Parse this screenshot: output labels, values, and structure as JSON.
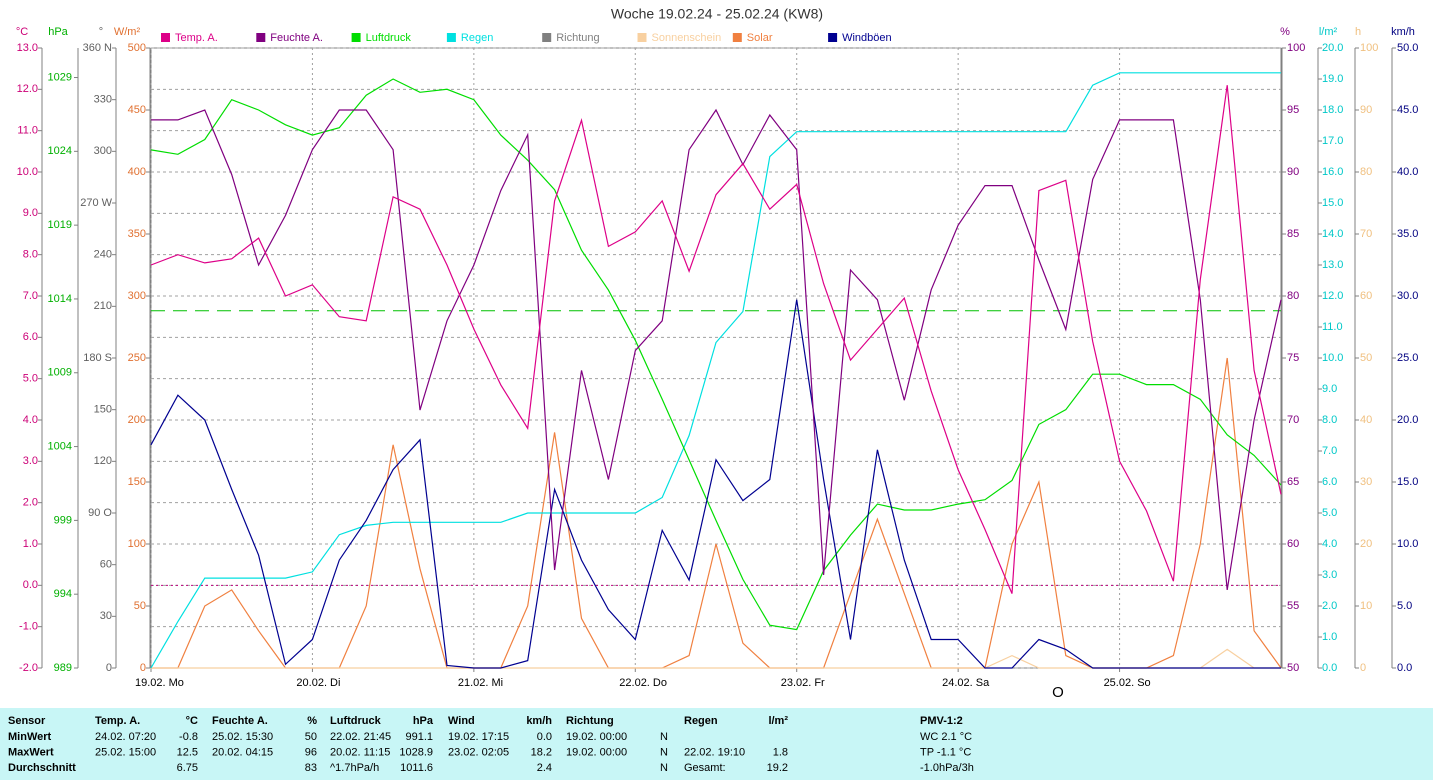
{
  "chart_data": {
    "type": "line",
    "title": "Woche 19.02.24 - 25.02.24 (KW8)",
    "grid": true,
    "xlim": [
      0,
      168
    ],
    "xticks": [
      {
        "value": 0,
        "label": "19.02. Mo"
      },
      {
        "value": 24,
        "label": "20.02. Di"
      },
      {
        "value": 48,
        "label": "21.02. Mi"
      },
      {
        "value": 72,
        "label": "22.02. Do"
      },
      {
        "value": 96,
        "label": "23.02. Fr"
      },
      {
        "value": 120,
        "label": "24.02. Sa"
      },
      {
        "value": 144,
        "label": "25.02. So"
      }
    ],
    "annotation": "O",
    "axes": {
      "temp": {
        "label": "°C",
        "color": "#cc0077",
        "ylim": [
          -2,
          13
        ],
        "yticks": [
          {
            "value": -2,
            "label": "-2.0"
          },
          {
            "value": -1,
            "label": "-1.0"
          },
          {
            "value": 0,
            "label": "0.0"
          },
          {
            "value": 1,
            "label": "1.0"
          },
          {
            "value": 2,
            "label": "2.0"
          },
          {
            "value": 3,
            "label": "3.0"
          },
          {
            "value": 4,
            "label": "4.0"
          },
          {
            "value": 5,
            "label": "5.0"
          },
          {
            "value": 6,
            "label": "6.0"
          },
          {
            "value": 7,
            "label": "7.0"
          },
          {
            "value": 8,
            "label": "8.0"
          },
          {
            "value": 9,
            "label": "9.0"
          },
          {
            "value": 10,
            "label": "10.0"
          },
          {
            "value": 11,
            "label": "11.0"
          },
          {
            "value": 12,
            "label": "12.0"
          },
          {
            "value": 13,
            "label": "13.0"
          }
        ]
      },
      "pressure": {
        "label": "hPa",
        "color": "#00b000",
        "ylim": [
          989,
          1031
        ],
        "yticks": [
          989,
          994,
          999,
          1004,
          1009,
          1014,
          1019,
          1024,
          1029
        ]
      },
      "direction": {
        "label": "°",
        "color": "#606060",
        "ylim": [
          0,
          360
        ],
        "yticks": [
          0,
          30,
          60,
          {
            "value": 90,
            "label": "90 O"
          },
          120,
          150,
          {
            "value": 180,
            "label": "180 S"
          },
          210,
          240,
          {
            "value": 270,
            "label": "270 W"
          },
          300,
          330,
          {
            "value": 360,
            "label": "360 N"
          }
        ]
      },
      "solar": {
        "label": "W/m²",
        "color": "#e07030",
        "ylim": [
          0,
          500
        ],
        "yticks": [
          0,
          50,
          100,
          150,
          200,
          250,
          300,
          350,
          400,
          450,
          500
        ]
      },
      "humidity": {
        "label": "%",
        "color": "#800080",
        "ylim": [
          50,
          100
        ],
        "yticks": [
          50,
          55,
          60,
          65,
          70,
          75,
          80,
          85,
          90,
          95,
          100
        ]
      },
      "rain": {
        "label": "l/m²",
        "color": "#00c8c8",
        "ylim": [
          0,
          20
        ],
        "yticks": [
          {
            "value": 0,
            "label": "0.0"
          },
          {
            "value": 1,
            "label": "1.0"
          },
          {
            "value": 2,
            "label": "2.0"
          },
          {
            "value": 3,
            "label": "3.0"
          },
          {
            "value": 4,
            "label": "4.0"
          },
          {
            "value": 5,
            "label": "5.0"
          },
          {
            "value": 6,
            "label": "6.0"
          },
          {
            "value": 7,
            "label": "7.0"
          },
          {
            "value": 8,
            "label": "8.0"
          },
          {
            "value": 9,
            "label": "9.0"
          },
          {
            "value": 10,
            "label": "10.0"
          },
          {
            "value": 11,
            "label": "11.0"
          },
          {
            "value": 12,
            "label": "12.0"
          },
          {
            "value": 13,
            "label": "13.0"
          },
          {
            "value": 14,
            "label": "14.0"
          },
          {
            "value": 15,
            "label": "15.0"
          },
          {
            "value": 16,
            "label": "16.0"
          },
          {
            "value": 17,
            "label": "17.0"
          },
          {
            "value": 18,
            "label": "18.0"
          },
          {
            "value": 19,
            "label": "19.0"
          },
          {
            "value": 20,
            "label": "20.0"
          }
        ]
      },
      "sunshine": {
        "label": "h",
        "color": "#f0c080",
        "ylim": [
          0,
          100
        ],
        "yticks": [
          0,
          10,
          20,
          30,
          40,
          50,
          60,
          70,
          80,
          90,
          100
        ]
      },
      "gust": {
        "label": "km/h",
        "color": "#000080",
        "ylim": [
          0,
          50
        ],
        "yticks": [
          {
            "value": 0,
            "label": "0.0"
          },
          {
            "value": 5,
            "label": "5.0"
          },
          {
            "value": 10,
            "label": "10.0"
          },
          {
            "value": 15,
            "label": "15.0"
          },
          {
            "value": 20,
            "label": "20.0"
          },
          {
            "value": 25,
            "label": "25.0"
          },
          {
            "value": 30,
            "label": "30.0"
          },
          {
            "value": 35,
            "label": "35.0"
          },
          {
            "value": 40,
            "label": "40.0"
          },
          {
            "value": 45,
            "label": "45.0"
          },
          {
            "value": 50,
            "label": "50.0"
          }
        ]
      }
    },
    "reference_lines": [
      {
        "axis": "pressure",
        "value": 1013.2,
        "color": "#00c000",
        "dash": "14 8"
      },
      {
        "axis": "temp",
        "value": 0,
        "color": "#c00080",
        "dash": "2 3"
      }
    ],
    "x": [
      0,
      4,
      8,
      12,
      16,
      20,
      24,
      28,
      32,
      36,
      40,
      44,
      48,
      52,
      56,
      60,
      64,
      68,
      72,
      76,
      80,
      84,
      88,
      92,
      96,
      100,
      104,
      108,
      112,
      116,
      120,
      124,
      128,
      132,
      136,
      140,
      144,
      148,
      152,
      156,
      160,
      164,
      168
    ],
    "series": [
      {
        "name": "Temp. A.",
        "color": "#dd0088",
        "axis": "temp",
        "values": [
          7.75,
          8.0,
          7.8,
          7.9,
          8.4,
          7.0,
          7.27,
          6.5,
          6.4,
          9.4,
          9.1,
          7.75,
          6.2,
          4.85,
          3.8,
          9.3,
          11.25,
          8.2,
          8.55,
          9.3,
          7.6,
          9.45,
          10.2,
          9.1,
          9.7,
          7.3,
          5.45,
          6.2,
          6.95,
          4.7,
          2.8,
          1.35,
          -0.2,
          9.55,
          9.8,
          5.9,
          3.0,
          1.8,
          0.1,
          7.4,
          12.1,
          5.2,
          2.2
        ]
      },
      {
        "name": "Feuchte A.",
        "color": "#800080",
        "axis": "humidity",
        "values": [
          94.2,
          94.2,
          95,
          89.8,
          82.5,
          86.5,
          91.8,
          95,
          95,
          91.8,
          70.8,
          78,
          82.5,
          88.5,
          93,
          57.9,
          74,
          65.2,
          75.6,
          78,
          91.8,
          95,
          90.6,
          94.6,
          91.8,
          57.5,
          82.1,
          79.7,
          71.6,
          80.5,
          85.7,
          88.9,
          88.9,
          82.9,
          77.3,
          89.4,
          94.2,
          94.2,
          94.2,
          79.7,
          56.3,
          70,
          79.7
        ]
      },
      {
        "name": "Luftdruck",
        "color": "#00dd00",
        "axis": "pressure",
        "values": [
          1024.1,
          1023.8,
          1024.8,
          1027.5,
          1026.8,
          1025.8,
          1025.1,
          1025.6,
          1027.8,
          1028.9,
          1028.0,
          1028.2,
          1027.5,
          1025.1,
          1023.4,
          1021.4,
          1017.3,
          1014.6,
          1011.2,
          1007.2,
          1003.1,
          999.0,
          995.0,
          991.9,
          991.6,
          995.6,
          998.0,
          1000.1,
          999.7,
          999.7,
          1000.1,
          1000.4,
          1001.7,
          1005.5,
          1006.5,
          1008.9,
          1008.9,
          1008.2,
          1008.2,
          1007.2,
          1004.8,
          1003.4,
          1001.4
        ]
      },
      {
        "name": "Regen",
        "color": "#00e0e0",
        "axis": "rain",
        "values": [
          0,
          1.5,
          2.9,
          2.9,
          2.9,
          2.9,
          3.1,
          4.3,
          4.6,
          4.7,
          4.7,
          4.7,
          4.7,
          4.7,
          5.0,
          5.0,
          5.0,
          5.0,
          5.0,
          5.5,
          7.5,
          10.5,
          11.5,
          16.5,
          17.3,
          17.3,
          17.3,
          17.3,
          17.3,
          17.3,
          17.3,
          17.3,
          17.3,
          17.3,
          17.3,
          18.8,
          19.2,
          19.2,
          19.2,
          19.2,
          19.2,
          19.2,
          19.2
        ]
      },
      {
        "name": "Richtung",
        "color": "#808080",
        "axis": "direction",
        "values": [
          null,
          null,
          null,
          null,
          null,
          null,
          null,
          null,
          null,
          null,
          null,
          null,
          null,
          null,
          null,
          null,
          null,
          null,
          null,
          null,
          null,
          null,
          null,
          null,
          null,
          null,
          null,
          null,
          null,
          null,
          null,
          null,
          null,
          null,
          null,
          null,
          null,
          null,
          null,
          null,
          null,
          null,
          null
        ]
      },
      {
        "name": "Sonnenschein",
        "color": "#f8d0a0",
        "axis": "sunshine",
        "values": [
          0,
          0,
          0,
          0,
          0,
          0,
          0,
          0,
          0,
          0,
          0,
          0,
          0,
          0,
          0,
          0,
          0,
          0,
          0,
          0,
          0,
          0,
          0,
          0,
          0,
          0,
          0,
          0,
          0,
          0,
          0,
          0,
          2,
          0,
          0,
          0,
          0,
          0,
          0,
          0,
          3,
          0,
          0
        ]
      },
      {
        "name": "Solar",
        "color": "#f08040",
        "axis": "solar",
        "values": [
          0,
          0,
          50,
          63,
          30,
          0,
          0,
          0,
          50,
          180,
          80,
          0,
          0,
          0,
          50,
          190,
          40,
          0,
          0,
          0,
          10,
          100,
          20,
          0,
          0,
          0,
          60,
          120,
          60,
          0,
          0,
          0,
          100,
          150,
          10,
          0,
          0,
          0,
          10,
          100,
          250,
          30,
          0
        ]
      },
      {
        "name": "Windböen",
        "color": "#000090",
        "axis": "gust",
        "values": [
          18,
          22,
          20,
          14.4,
          9.1,
          0.3,
          2.3,
          8.7,
          11.9,
          16,
          18.4,
          0.2,
          0,
          0,
          0.6,
          14.4,
          8.7,
          4.7,
          2.3,
          11.1,
          7.1,
          16.8,
          13.5,
          15.2,
          29.7,
          15.2,
          2.3,
          17.6,
          8.7,
          2.3,
          2.3,
          0,
          0,
          2.3,
          1.5,
          0,
          0,
          0,
          0,
          0,
          0,
          0,
          0
        ]
      }
    ]
  },
  "stats_table": {
    "header": {
      "sensor": "Sensor",
      "temp": [
        "Temp. A.",
        "°C"
      ],
      "humidity": [
        "Feuchte A.",
        "%"
      ],
      "pressure": [
        "Luftdruck",
        "hPa"
      ],
      "wind": [
        "Wind",
        "km/h"
      ],
      "direction": [
        "Richtung"
      ],
      "rain": [
        "Regen",
        "l/m²"
      ],
      "pmv": "PMV-1:2"
    },
    "rows": [
      {
        "label": "MinWert",
        "temp": [
          "24.02.  07:20",
          "-0.8"
        ],
        "humidity": [
          "25.02.  15:30",
          "50"
        ],
        "pressure": [
          "22.02.  21:45",
          "991.1"
        ],
        "wind": [
          "19.02.  17:15",
          "0.0"
        ],
        "direction": [
          "19.02.  00:00",
          "N"
        ],
        "pmv": "WC 2.1 °C"
      },
      {
        "label": "MaxWert",
        "temp": [
          "25.02.  15:00",
          "12.5"
        ],
        "humidity": [
          "20.02.  04:15",
          "96"
        ],
        "pressure": [
          "20.02.  11:15",
          "1028.9"
        ],
        "wind": [
          "23.02.  02:05",
          "18.2"
        ],
        "direction": [
          "19.02.  00:00",
          "N"
        ],
        "rain": [
          "22.02.  19:10",
          "1.8"
        ],
        "pmv": "TP -1.1 °C"
      },
      {
        "label": "Durchschnitt",
        "temp": [
          null,
          "6.75"
        ],
        "humidity": [
          null,
          "83"
        ],
        "pressure": [
          "^1.7hPa/h",
          "1011.6"
        ],
        "wind": [
          null,
          "2.4"
        ],
        "direction": [
          null,
          "N"
        ],
        "rain": [
          "Gesamt:",
          "19.2"
        ],
        "pmv": "-1.0hPa/3h"
      }
    ]
  }
}
